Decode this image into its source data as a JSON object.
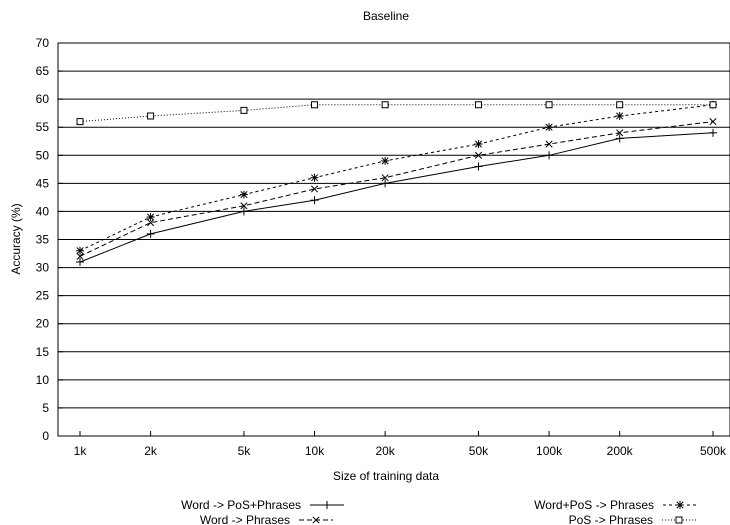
{
  "chart_data": {
    "type": "line",
    "title": "Baseline",
    "xlabel": "Size of training data",
    "ylabel": "Accuracy (%)",
    "ylim": [
      0,
      70
    ],
    "y_ticks": [
      0,
      5,
      10,
      15,
      20,
      25,
      30,
      35,
      40,
      45,
      50,
      55,
      60,
      65,
      70
    ],
    "x_scale": "log",
    "categories": [
      "1k",
      "2k",
      "5k",
      "10k",
      "20k",
      "50k",
      "100k",
      "200k",
      "500k"
    ],
    "x": [
      1000,
      2000,
      5000,
      10000,
      20000,
      50000,
      100000,
      200000,
      500000
    ],
    "grid": "horizontal",
    "legend_position": "bottom",
    "series": [
      {
        "name": "Word -> PoS+Phrases",
        "values": [
          31,
          36,
          40,
          42,
          45,
          48,
          50,
          53,
          54
        ],
        "marker": "plus",
        "line": "solid"
      },
      {
        "name": "Word -> Phrases",
        "values": [
          32,
          38,
          41,
          44,
          46,
          50,
          52,
          54,
          56
        ],
        "marker": "cross",
        "line": "dashed"
      },
      {
        "name": "Word+PoS -> Phrases",
        "values": [
          33,
          39,
          43,
          46,
          49,
          52,
          55,
          57,
          59
        ],
        "marker": "star",
        "line": "short-dash"
      },
      {
        "name": "PoS -> Phrases",
        "values": [
          56,
          57,
          58,
          59,
          59,
          59,
          59,
          59,
          59
        ],
        "marker": "square",
        "line": "dotted"
      }
    ]
  }
}
